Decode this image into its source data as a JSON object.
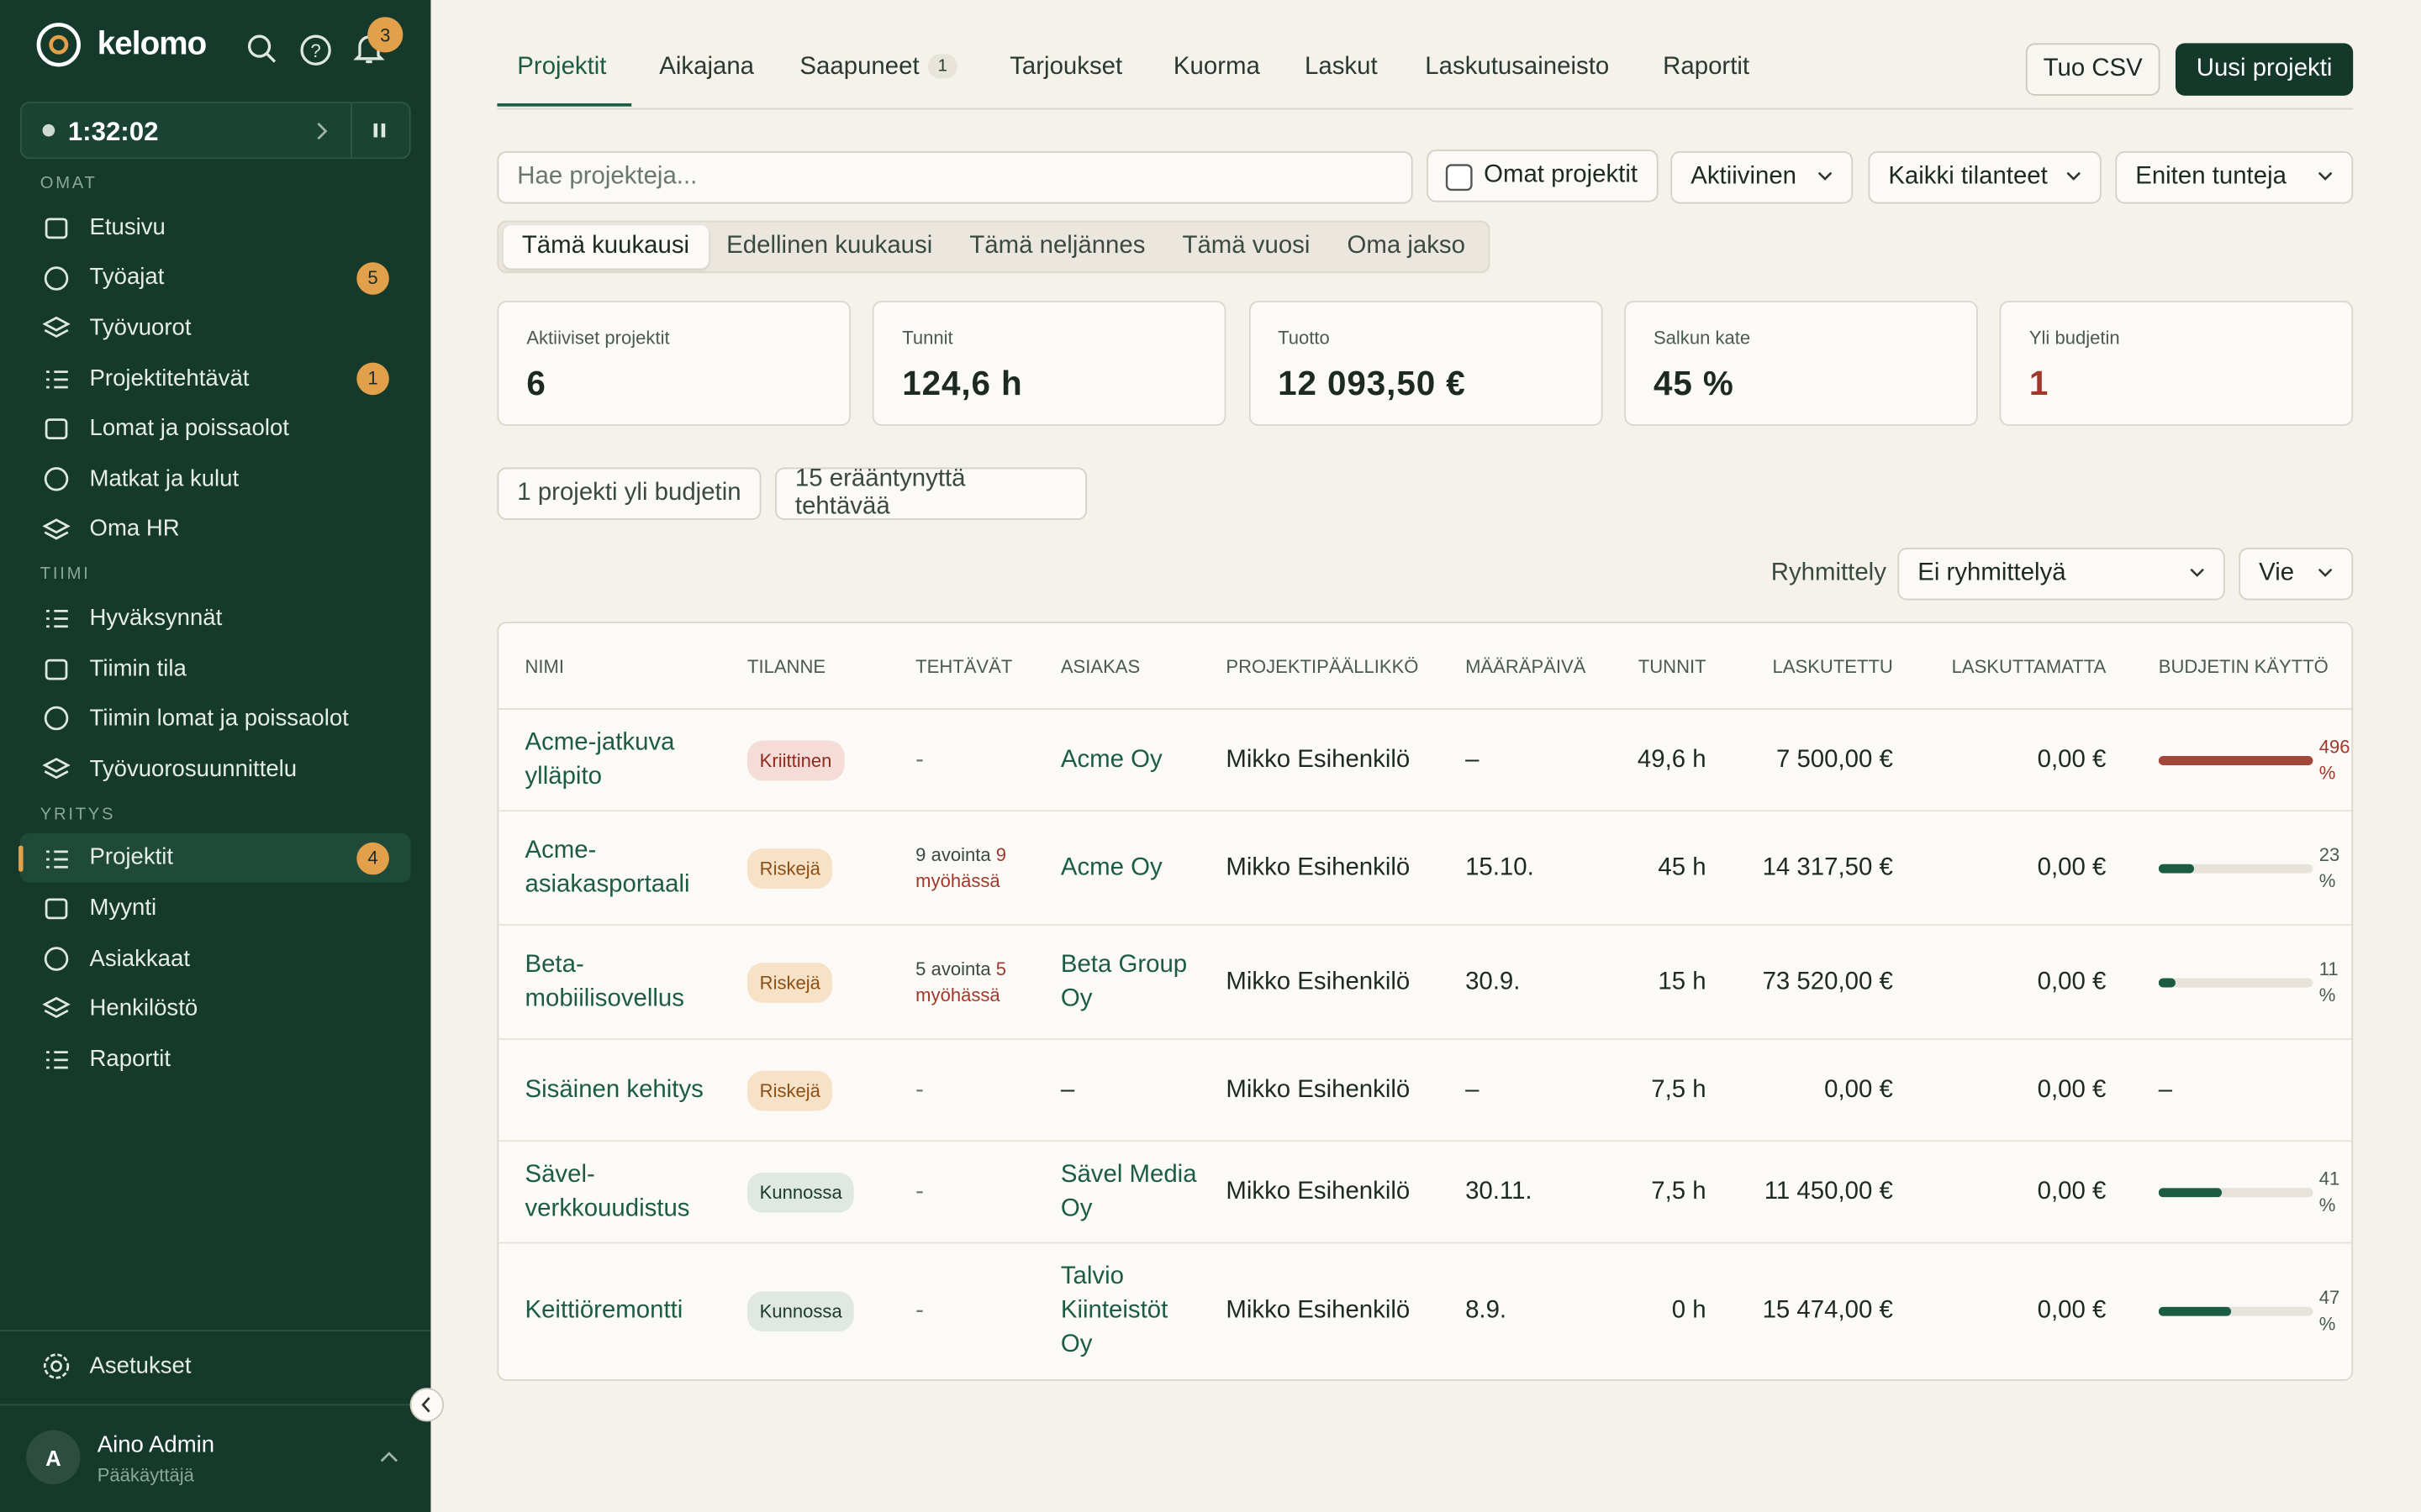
{
  "sidebar": {
    "brand": "kelomo",
    "notifications": "3",
    "timer": "1:32:02",
    "sections": [
      {
        "title": "OMAT",
        "items": [
          {
            "label": "Etusivu"
          },
          {
            "label": "Työajat",
            "badge": "5"
          },
          {
            "label": "Työvuorot"
          },
          {
            "label": "Projektitehtävät",
            "badge": "1"
          },
          {
            "label": "Lomat ja poissaolot"
          },
          {
            "label": "Matkat ja kulut"
          },
          {
            "label": "Oma HR"
          }
        ]
      },
      {
        "title": "TIIMI",
        "items": [
          {
            "label": "Hyväksynnät"
          },
          {
            "label": "Tiimin tila"
          },
          {
            "label": "Tiimin lomat ja poissaolot"
          },
          {
            "label": "Työvuorosuunnittelu"
          }
        ]
      },
      {
        "title": "YRITYS",
        "items": [
          {
            "label": "Projektit",
            "badge": "4",
            "active": true
          },
          {
            "label": "Myynti"
          },
          {
            "label": "Asiakkaat"
          },
          {
            "label": "Henkilöstö"
          },
          {
            "label": "Raportit"
          }
        ]
      }
    ],
    "settings": "Asetukset",
    "user": {
      "initial": "A",
      "name": "Aino Admin",
      "role": "Pääkäyttäjä"
    }
  },
  "tabs": [
    {
      "label": "Projektit",
      "active": true
    },
    {
      "label": "Aikajana"
    },
    {
      "label": "Saapuneet",
      "badge": "1"
    },
    {
      "label": "Tarjoukset"
    },
    {
      "label": "Kuorma"
    },
    {
      "label": "Laskut"
    },
    {
      "label": "Laskutusaineisto"
    },
    {
      "label": "Raportit"
    }
  ],
  "actions": {
    "secondary": "Tuo CSV",
    "primary": "Uusi projekti"
  },
  "search_placeholder": "Hae projekteja...",
  "filters": {
    "checkbox": "Omat projektit",
    "selects": [
      "Aktiivinen",
      "Kaikki tilanteet",
      "Eniten tunteja"
    ]
  },
  "periods": [
    {
      "label": "Tämä kuukausi",
      "active": true
    },
    {
      "label": "Edellinen kuukausi"
    },
    {
      "label": "Tämä neljännes"
    },
    {
      "label": "Tämä vuosi"
    },
    {
      "label": "Oma jakso"
    }
  ],
  "stats": [
    {
      "label": "Aktiiviset projektit",
      "value": "6"
    },
    {
      "label": "Tunnit",
      "value": "124,6 h"
    },
    {
      "label": "Tuotto",
      "value": "12 093,50 €"
    },
    {
      "label": "Salkun kate",
      "value": "45 %"
    },
    {
      "label": "Yli budjetin",
      "value": "1",
      "color": "#a0382b"
    }
  ],
  "alerts": [
    "1 projekti yli budjetin",
    "15 erääntynyttä tehtävää"
  ],
  "grouping": {
    "label": "Ryhmittely",
    "value": "Ei ryhmittelyä",
    "export": "Vie"
  },
  "table": {
    "columns": [
      "NIMI",
      "TILANNE",
      "TEHTÄVÄT",
      "ASIAKAS",
      "PROJEKTIPÄÄLLIKKÖ",
      "MÄÄRÄPÄIVÄ",
      "TUNNIT",
      "LASKUTETTU",
      "LASKUTTAMATTA",
      "BUDJETIN KÄYTTÖ"
    ],
    "rows": [
      {
        "name": "Acme-jatkuva ylläpito",
        "status": {
          "label": "Kriittinen",
          "color": "red"
        },
        "tasks": "-",
        "client": "Acme Oy",
        "manager": "Mikko Esihenkilö",
        "due": "–",
        "hours": "49,6 h",
        "invoiced": "7 500,00 €",
        "uninvoiced": "0,00 €",
        "budget": {
          "value": 496,
          "label": "496 %"
        }
      },
      {
        "name": "Acme-asiakasportaali",
        "status": {
          "label": "Riskejä",
          "color": "orange"
        },
        "tasks": {
          "open": "9 avointa",
          "late": "9 myöhässä"
        },
        "client": "Acme Oy",
        "manager": "Mikko Esihenkilö",
        "due": "15.10.",
        "hours": "45 h",
        "invoiced": "14 317,50 €",
        "uninvoiced": "0,00 €",
        "budget": {
          "value": 23,
          "label": "23 %"
        }
      },
      {
        "name": "Beta-mobiilisovellus",
        "status": {
          "label": "Riskejä",
          "color": "orange"
        },
        "tasks": {
          "open": "5 avointa",
          "late": "5 myöhässä"
        },
        "client": "Beta Group Oy",
        "manager": "Mikko Esihenkilö",
        "due": "30.9.",
        "hours": "15 h",
        "invoiced": "73 520,00 €",
        "uninvoiced": "0,00 €",
        "budget": {
          "value": 11,
          "label": "11 %"
        }
      },
      {
        "name": "Sisäinen kehitys",
        "status": {
          "label": "Riskejä",
          "color": "orange"
        },
        "tasks": "-",
        "client": "–",
        "manager": "Mikko Esihenkilö",
        "due": "–",
        "hours": "7,5 h",
        "invoiced": "0,00 €",
        "uninvoiced": "0,00 €",
        "budget": "–"
      },
      {
        "name": "Sävel-verkkouudistus",
        "status": {
          "label": "Kunnossa",
          "color": "green"
        },
        "tasks": "-",
        "client": "Sävel Media Oy",
        "manager": "Mikko Esihenkilö",
        "due": "30.11.",
        "hours": "7,5 h",
        "invoiced": "11 450,00 €",
        "uninvoiced": "0,00 €",
        "budget": {
          "value": 41,
          "label": "41 %"
        }
      },
      {
        "name": "Keittiöremontti",
        "status": {
          "label": "Kunnossa",
          "color": "green"
        },
        "tasks": "-",
        "client": "Talvio Kiinteistöt Oy",
        "manager": "Mikko Esihenkilö",
        "due": "8.9.",
        "hours": "0 h",
        "invoiced": "15 474,00 €",
        "uninvoiced": "0,00 €",
        "budget": {
          "value": 47,
          "label": "47 %"
        }
      }
    ]
  }
}
